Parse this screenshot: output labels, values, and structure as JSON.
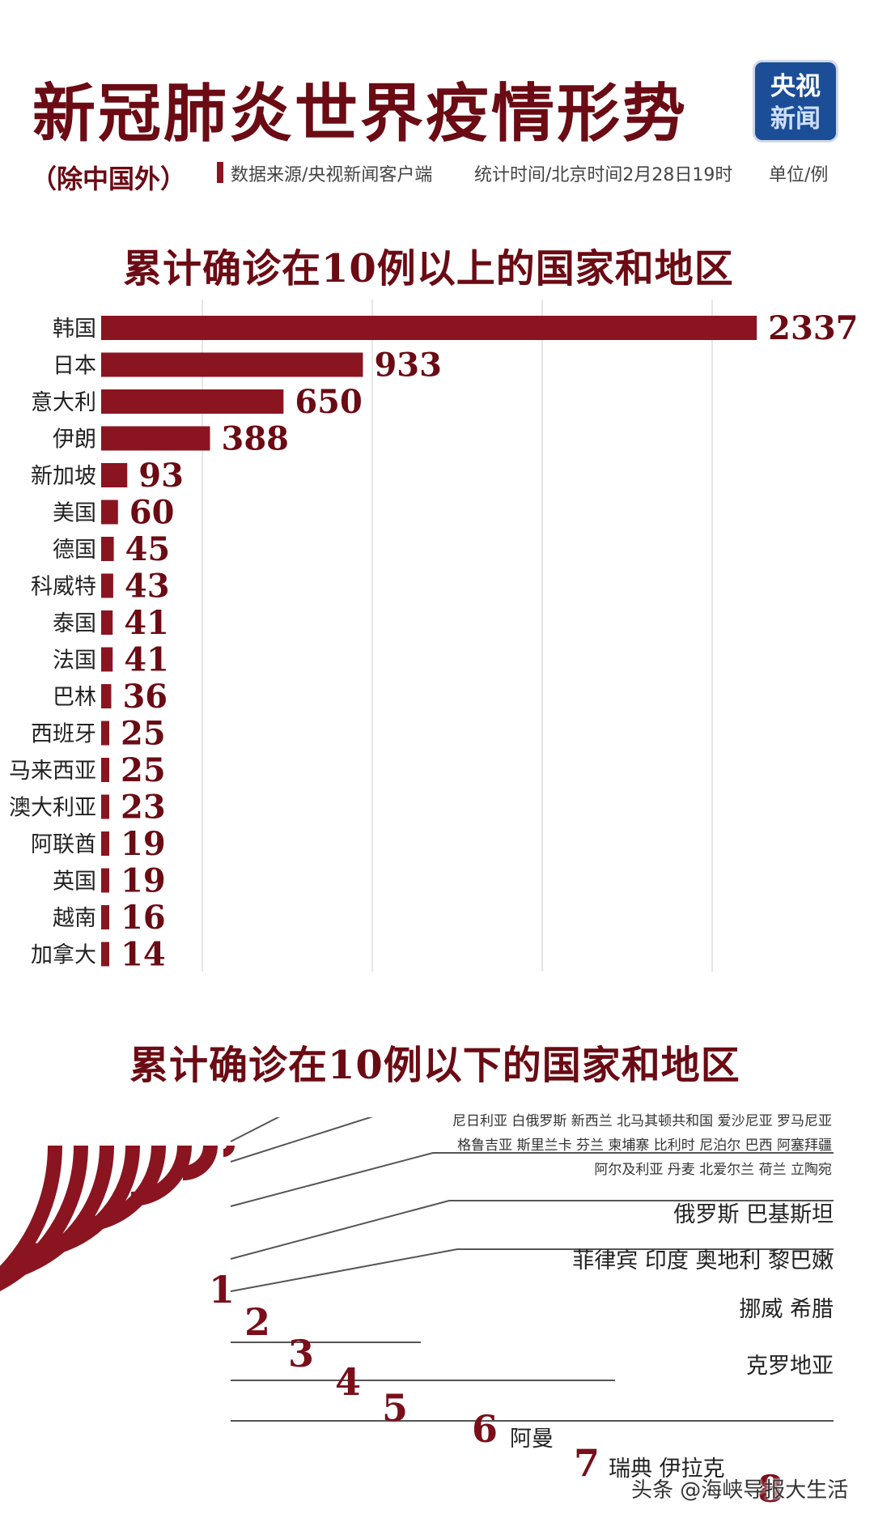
{
  "header": {
    "title": "新冠肺炎世界疫情形势",
    "subtitle": "（除中国外）",
    "source": "数据来源/央视新闻客户端",
    "stat_time": "统计时间/北京时间2月28日19时",
    "unit": "单位/例",
    "logo_line1": "央视",
    "logo_line2": "新闻"
  },
  "section1": {
    "title": "累计确诊在10例以上的国家和地区"
  },
  "section2": {
    "title": "累计确诊在10例以下的国家和地区",
    "one_case_lines": [
      "尼日利亚  白俄罗斯  新西兰  北马其顿共和国  爱沙尼亚  罗马尼亚",
      "格鲁吉亚  斯里兰卡  芬兰  柬埔寨  比利时  尼泊尔  巴西  阿塞拜疆",
      "阿尔及利亚  丹麦  北爱尔兰  荷兰  立陶宛"
    ],
    "ranks": [
      {
        "rank": "1",
        "countries": ""
      },
      {
        "rank": "2",
        "countries": "俄罗斯  巴基斯坦"
      },
      {
        "rank": "3",
        "countries": "菲律宾  印度  奥地利  黎巴嫩"
      },
      {
        "rank": "4",
        "countries": "挪威  希腊"
      },
      {
        "rank": "5",
        "countries": "克罗地亚"
      },
      {
        "rank": "6",
        "countries": "阿曼"
      },
      {
        "rank": "7",
        "countries": "瑞典  伊拉克"
      },
      {
        "rank": "8",
        "countries": ""
      }
    ]
  },
  "watermark": "头条 @海峡导报大生活",
  "colors": {
    "primary": "#8a1520",
    "dark": "#6b0b14",
    "grid": "#cccccc"
  },
  "chart_data": {
    "type": "bar",
    "orientation": "horizontal",
    "title": "累计确诊在10例以上的国家和地区",
    "categories": [
      "韩国",
      "日本",
      "意大利",
      "伊朗",
      "新加坡",
      "美国",
      "德国",
      "科威特",
      "泰国",
      "法国",
      "巴林",
      "西班牙",
      "马来西亚",
      "澳大利亚",
      "阿联酋",
      "英国",
      "越南",
      "加拿大"
    ],
    "values": [
      2337,
      933,
      650,
      388,
      93,
      60,
      45,
      43,
      41,
      41,
      36,
      25,
      25,
      23,
      19,
      19,
      16,
      14
    ],
    "xlim": [
      0,
      2400
    ],
    "grid": true
  }
}
